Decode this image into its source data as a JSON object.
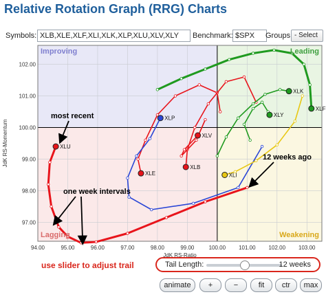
{
  "title": "Relative Rotation Graph (RRG) Charts",
  "toolbar": {
    "symbols_label": "Symbols:",
    "symbols_value": "XLB,XLE,XLF,XLI,XLK,XLP,XLU,XLV,XLY",
    "benchmark_label": "Benchmark:",
    "benchmark_value": "$SPX",
    "groups_label": "Groups:",
    "groups_value": "- Select -"
  },
  "chart_data": {
    "type": "scatter",
    "xlabel": "JdK RS-Ratio",
    "ylabel": "JdK RS-Momentum",
    "xlim": [
      94.0,
      103.5
    ],
    "ylim": [
      96.4,
      102.6
    ],
    "xticks": [
      "94.00",
      "95.00",
      "96.00",
      "97.00",
      "98.00",
      "99.00",
      "100.00",
      "101.00",
      "102.00",
      "103.00"
    ],
    "yticks": [
      "97.00",
      "98.00",
      "99.00",
      "100.00",
      "101.00",
      "102.00"
    ],
    "center": [
      100,
      100
    ],
    "quadrants": {
      "top_left": {
        "label": "Improving",
        "color": "#e8e8f7"
      },
      "top_right": {
        "label": "Leading",
        "color": "#e9f5e3"
      },
      "bottom_left": {
        "label": "Lagging",
        "color": "#fbe9e9"
      },
      "bottom_right": {
        "label": "Weakening",
        "color": "#fbf7e1"
      }
    },
    "quadrant_label_colors": {
      "Improving": "#7f7fcf",
      "Leading": "#3f9f3f",
      "Lagging": "#d96b6b",
      "Weakening": "#d9a81a"
    },
    "series": [
      {
        "name": "XLU",
        "color": "#e8141b",
        "highlight": true,
        "points": [
          [
            101.0,
            98.1
          ],
          [
            99.6,
            97.65
          ],
          [
            98.3,
            97.15
          ],
          [
            97.0,
            96.65
          ],
          [
            95.95,
            96.38
          ],
          [
            95.45,
            96.35
          ],
          [
            95.0,
            96.55
          ],
          [
            94.7,
            96.85
          ],
          [
            94.45,
            97.5
          ],
          [
            94.35,
            98.2
          ],
          [
            94.4,
            98.9
          ],
          [
            94.6,
            99.4
          ]
        ]
      },
      {
        "name": "XLE",
        "color": "#e8141b",
        "highlight": false,
        "points": [
          [
            100.1,
            100.5
          ],
          [
            100.0,
            101.1
          ],
          [
            99.4,
            101.35
          ],
          [
            98.6,
            101.0
          ],
          [
            98.0,
            100.4
          ],
          [
            97.6,
            99.6
          ],
          [
            97.35,
            99.0
          ],
          [
            97.45,
            98.55
          ]
        ]
      },
      {
        "name": "XLB",
        "color": "#e8141b",
        "highlight": false,
        "points": [
          [
            101.3,
            100.8
          ],
          [
            100.9,
            101.6
          ],
          [
            100.3,
            101.45
          ],
          [
            99.7,
            100.75
          ],
          [
            99.25,
            100.0
          ],
          [
            99.0,
            99.3
          ],
          [
            98.95,
            98.75
          ]
        ]
      },
      {
        "name": "XLV",
        "color": "#e8141b",
        "highlight": false,
        "points": [
          [
            99.6,
            100.25
          ],
          [
            99.3,
            99.6
          ],
          [
            98.8,
            99.1
          ],
          [
            98.9,
            99.3
          ],
          [
            99.35,
            99.75
          ]
        ]
      },
      {
        "name": "XLP",
        "color": "#2a46d6",
        "highlight": false,
        "points": [
          [
            101.5,
            99.4
          ],
          [
            100.7,
            98.1
          ],
          [
            99.2,
            97.6
          ],
          [
            97.8,
            97.4
          ],
          [
            97.05,
            97.8
          ],
          [
            97.0,
            98.4
          ],
          [
            97.3,
            99.1
          ],
          [
            97.75,
            99.65
          ],
          [
            98.1,
            100.3
          ]
        ]
      },
      {
        "name": "XLK",
        "color": "#1f9a1f",
        "highlight": false,
        "points": [
          [
            100.0,
            99.1
          ],
          [
            100.3,
            99.7
          ],
          [
            100.7,
            100.3
          ],
          [
            101.2,
            100.75
          ],
          [
            101.6,
            101.05
          ],
          [
            102.1,
            101.2
          ],
          [
            102.4,
            101.15
          ]
        ]
      },
      {
        "name": "XLF",
        "color": "#1f9a1f",
        "highlight": true,
        "points": [
          [
            98.0,
            101.2
          ],
          [
            98.8,
            101.55
          ],
          [
            99.6,
            101.85
          ],
          [
            100.4,
            102.15
          ],
          [
            101.2,
            102.35
          ],
          [
            101.9,
            102.45
          ],
          [
            102.5,
            102.35
          ],
          [
            102.9,
            102.0
          ],
          [
            103.1,
            101.35
          ],
          [
            103.15,
            100.6
          ]
        ]
      },
      {
        "name": "XLY",
        "color": "#1f9a1f",
        "highlight": false,
        "points": [
          [
            101.1,
            99.6
          ],
          [
            100.9,
            100.1
          ],
          [
            101.2,
            100.6
          ],
          [
            101.5,
            100.8
          ],
          [
            101.7,
            100.5
          ],
          [
            101.75,
            100.4
          ]
        ]
      },
      {
        "name": "XLI",
        "color": "#e8c712",
        "highlight": false,
        "points": [
          [
            102.85,
            101.0
          ],
          [
            102.6,
            100.2
          ],
          [
            102.0,
            99.45
          ],
          [
            101.3,
            98.95
          ],
          [
            100.6,
            98.6
          ],
          [
            100.25,
            98.5
          ]
        ]
      }
    ],
    "annotations": [
      {
        "text": "most recent",
        "arrow_to": [
          94.6,
          99.4
        ]
      },
      {
        "text": "12 weeks ago",
        "arrow_to": [
          101.0,
          98.1
        ]
      },
      {
        "text": "one week intervals",
        "arrow_to": [
          [
            94.55,
            96.95
          ],
          [
            95.5,
            96.35
          ]
        ]
      }
    ]
  },
  "controls": {
    "note": "use slider to adjust trail",
    "tail_label": "Tail Length:",
    "tail_value": "12 weeks",
    "tail_fraction": 0.5,
    "buttons": [
      "animate",
      "+",
      "−",
      "fit",
      "ctr",
      "max"
    ]
  }
}
